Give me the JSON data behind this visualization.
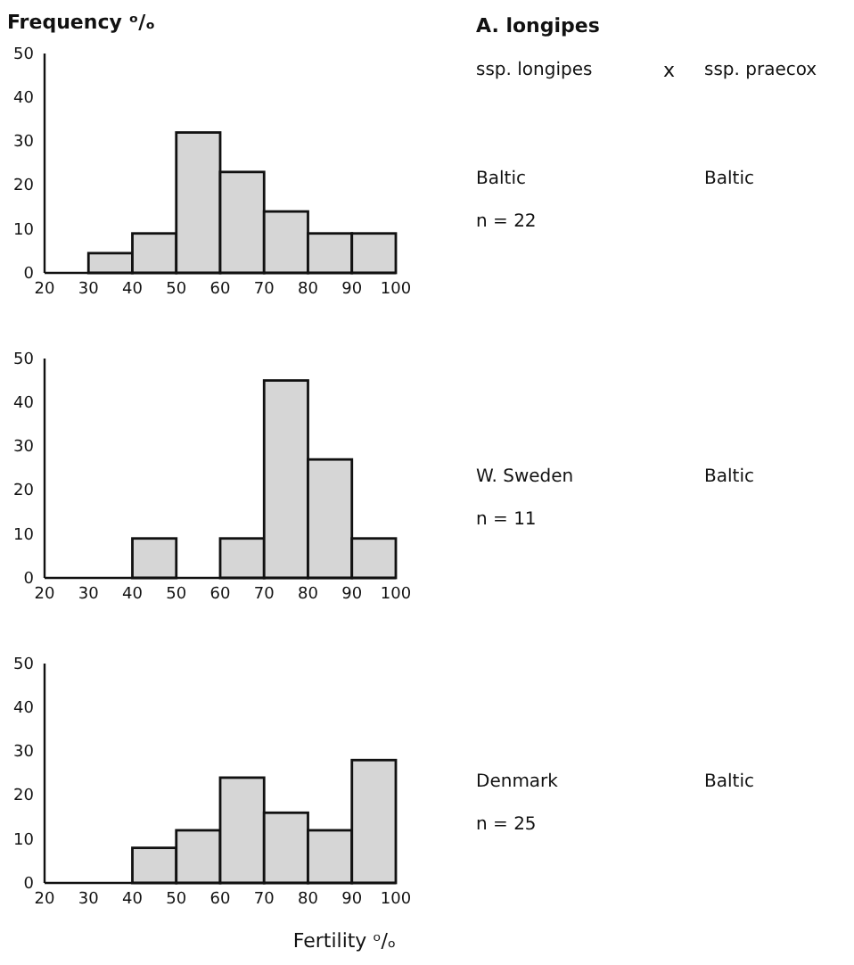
{
  "chart_data": [
    {
      "type": "histogram",
      "ylabel": "Frequency ᵒ/ₒ",
      "bins": [
        20,
        30,
        40,
        50,
        60,
        70,
        80,
        90,
        100
      ],
      "values": [
        0,
        4.5,
        9,
        32,
        23,
        14,
        9,
        9
      ],
      "color": "#d6d6d6",
      "xlim": [
        20,
        100
      ],
      "ylim": [
        0,
        50
      ],
      "xticks": [
        20,
        30,
        40,
        50,
        60,
        70,
        80,
        90,
        100
      ],
      "yticks": [
        0,
        10,
        20,
        30,
        40,
        50
      ],
      "grid": false,
      "annotations": [
        "A. longipes",
        "ssp. longipes",
        "x",
        "ssp. praecox",
        "Baltic",
        "Baltic",
        "n = 22"
      ]
    },
    {
      "type": "histogram",
      "bins": [
        20,
        30,
        40,
        50,
        60,
        70,
        80,
        90,
        100
      ],
      "values": [
        0,
        0,
        9,
        0,
        9,
        45,
        27,
        9
      ],
      "color": "#d6d6d6",
      "xlim": [
        20,
        100
      ],
      "ylim": [
        0,
        50
      ],
      "xticks": [
        20,
        30,
        40,
        50,
        60,
        70,
        80,
        90,
        100
      ],
      "yticks": [
        0,
        10,
        20,
        30,
        40,
        50
      ],
      "grid": false,
      "annotations": [
        "W. Sweden",
        "Baltic",
        "n = 11"
      ]
    },
    {
      "type": "histogram",
      "xlabel": "Fertility ᵒ/ₒ",
      "bins": [
        20,
        30,
        40,
        50,
        60,
        70,
        80,
        90,
        100
      ],
      "values": [
        0,
        0,
        8,
        12,
        24,
        16,
        12,
        28
      ],
      "color": "#d6d6d6",
      "xlim": [
        20,
        100
      ],
      "ylim": [
        0,
        50
      ],
      "xticks": [
        20,
        30,
        40,
        50,
        60,
        70,
        80,
        90,
        100
      ],
      "yticks": [
        0,
        10,
        20,
        30,
        40,
        50
      ],
      "grid": false,
      "annotations": [
        "Denmark",
        "Baltic",
        "n = 25"
      ]
    }
  ]
}
